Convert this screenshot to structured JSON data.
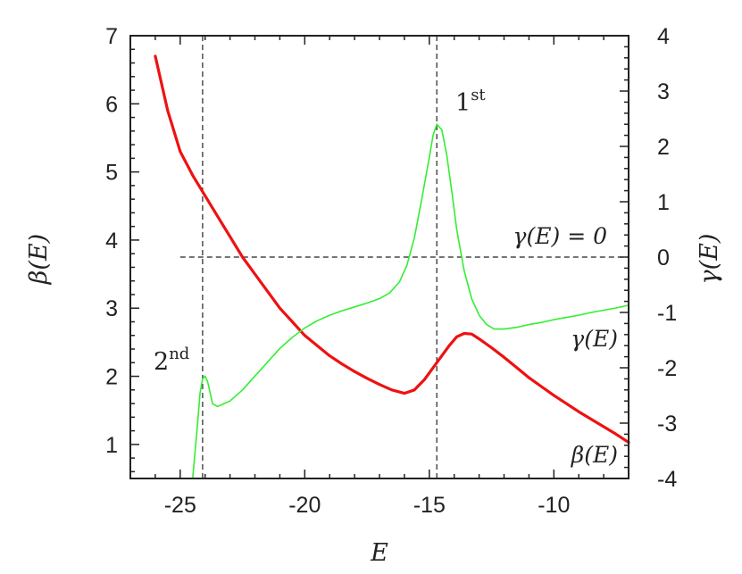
{
  "chart_data": {
    "type": "line",
    "xlabel": "E",
    "ylabel": "β(E)",
    "y2label": "γ(E)",
    "xlim": [
      -27,
      -7
    ],
    "ylim": [
      0.5,
      7
    ],
    "y2lim": [
      -4,
      4
    ],
    "xticks": [
      -25,
      -20,
      -15,
      -10
    ],
    "yticks": [
      1,
      2,
      3,
      4,
      5,
      6,
      7
    ],
    "y2ticks": [
      -4,
      -3,
      -2,
      -1,
      0,
      1,
      2,
      3,
      4
    ],
    "grid": false,
    "vlines": [
      -24.1,
      -14.7
    ],
    "hline": {
      "axis": "y2",
      "value": 0,
      "xfrom": -25
    },
    "annotations": {
      "first": {
        "base": "1",
        "sup": "st"
      },
      "second": {
        "base": "2",
        "sup": "nd"
      },
      "gamma_zero": "γ(E) = 0",
      "gamma_label": "γ(E)",
      "beta_label": "β(E)"
    },
    "series": [
      {
        "name": "β(E)",
        "axis": "y",
        "color": "#ee1111",
        "x": [
          -26.0,
          -25.5,
          -25.0,
          -24.5,
          -24.0,
          -23.5,
          -23.0,
          -22.5,
          -22.0,
          -21.5,
          -21.0,
          -20.5,
          -20.0,
          -19.5,
          -19.0,
          -18.5,
          -18.0,
          -17.5,
          -17.0,
          -16.5,
          -16.0,
          -15.6,
          -15.2,
          -14.8,
          -14.5,
          -14.2,
          -13.9,
          -13.6,
          -13.3,
          -13.0,
          -12.5,
          -12.0,
          -11.5,
          -11.0,
          -10.5,
          -10.0,
          -9.5,
          -9.0,
          -8.5,
          -8.0,
          -7.5,
          -7.0
        ],
        "y": [
          6.7,
          5.9,
          5.3,
          4.95,
          4.65,
          4.35,
          4.05,
          3.75,
          3.5,
          3.25,
          3.0,
          2.8,
          2.6,
          2.45,
          2.3,
          2.18,
          2.07,
          1.97,
          1.88,
          1.8,
          1.75,
          1.8,
          1.95,
          2.15,
          2.3,
          2.45,
          2.58,
          2.63,
          2.62,
          2.55,
          2.42,
          2.28,
          2.13,
          1.98,
          1.85,
          1.72,
          1.6,
          1.48,
          1.37,
          1.26,
          1.15,
          1.03
        ]
      },
      {
        "name": "γ(E)",
        "axis": "y2",
        "color": "#33ee33",
        "x": [
          -24.5,
          -24.3,
          -24.2,
          -24.1,
          -24.0,
          -23.9,
          -23.8,
          -23.7,
          -23.5,
          -23.0,
          -22.5,
          -22.0,
          -21.5,
          -21.0,
          -20.5,
          -20.0,
          -19.5,
          -19.0,
          -18.5,
          -18.0,
          -17.5,
          -17.0,
          -16.6,
          -16.2,
          -15.9,
          -15.6,
          -15.3,
          -15.0,
          -14.85,
          -14.7,
          -14.5,
          -14.3,
          -14.1,
          -13.9,
          -13.6,
          -13.3,
          -13.0,
          -12.7,
          -12.4,
          -12.0,
          -11.5,
          -11.0,
          -10.5,
          -10.0,
          -9.5,
          -9.0,
          -8.5,
          -8.0,
          -7.5,
          -7.0
        ],
        "y": [
          -4.0,
          -3.0,
          -2.45,
          -2.2,
          -2.15,
          -2.25,
          -2.45,
          -2.65,
          -2.7,
          -2.6,
          -2.4,
          -2.15,
          -1.9,
          -1.65,
          -1.45,
          -1.28,
          -1.15,
          -1.05,
          -0.97,
          -0.9,
          -0.83,
          -0.75,
          -0.65,
          -0.45,
          -0.15,
          0.35,
          1.05,
          1.8,
          2.2,
          2.4,
          2.3,
          1.85,
          1.2,
          0.5,
          -0.25,
          -0.75,
          -1.05,
          -1.22,
          -1.3,
          -1.3,
          -1.27,
          -1.22,
          -1.18,
          -1.13,
          -1.09,
          -1.05,
          -1.0,
          -0.96,
          -0.92,
          -0.87
        ]
      }
    ]
  }
}
